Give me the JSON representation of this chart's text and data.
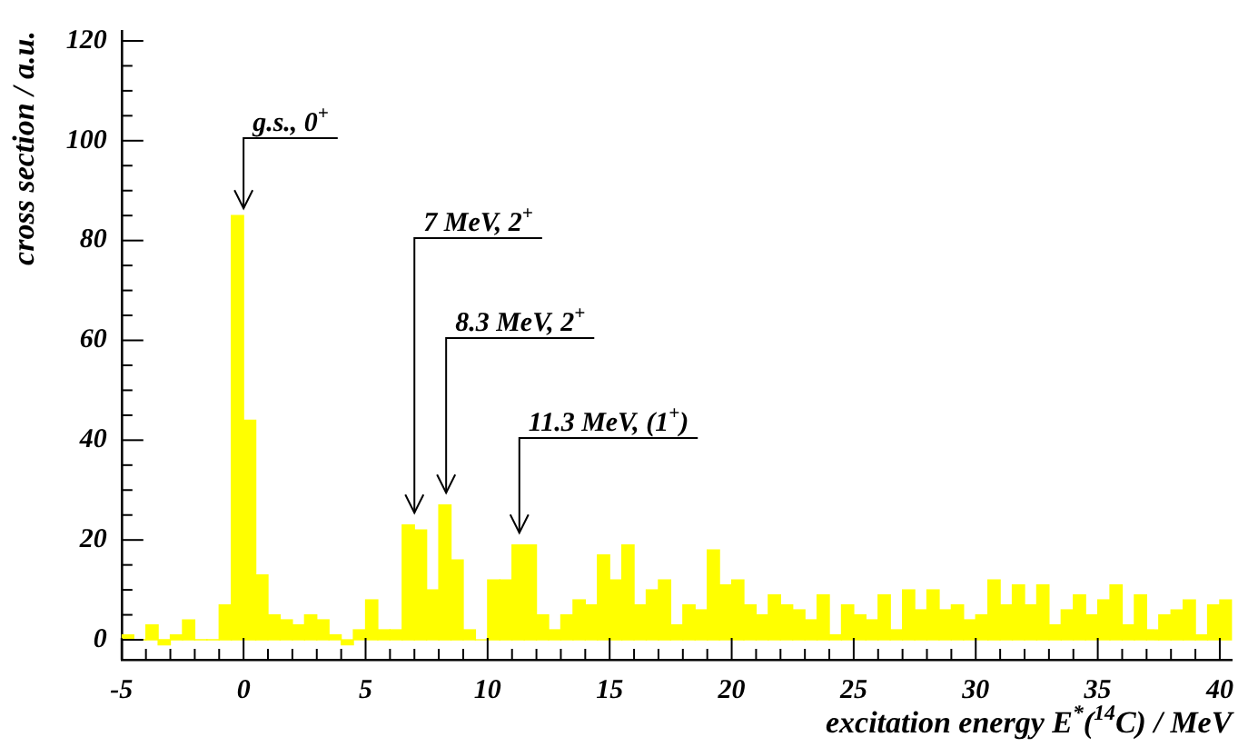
{
  "chart_data": {
    "type": "histogram",
    "xlabel": "excitation energy E$^{*}$($^{14}$C) / MeV",
    "ylabel": "cross section / a.u.",
    "color": "#ffff00",
    "grid": false,
    "bins": [
      -5,
      -4.5,
      -4,
      -3.5,
      -3,
      -2.5,
      -2,
      -1.5,
      -1,
      -0.5,
      0,
      0.5,
      1,
      1.5,
      2,
      2.5,
      3,
      3.5,
      4,
      4.5,
      5,
      5.5,
      6,
      6.5,
      7,
      7.5,
      8,
      8.5,
      9,
      9.5,
      10,
      10.5,
      11,
      11.5,
      12,
      12.5,
      13,
      13.5,
      14,
      14.5,
      15,
      15.5,
      16,
      16.5,
      17,
      17.5,
      18,
      18.5,
      19,
      19.5,
      20,
      20.5,
      21,
      21.5,
      22,
      22.5,
      23,
      23.5,
      24,
      24.5,
      25,
      25.5,
      26,
      26.5,
      27,
      27.5,
      28,
      28.5,
      29,
      29.5,
      30,
      30.5,
      31,
      31.5,
      32,
      32.5,
      33,
      33.5,
      34,
      34.5,
      35,
      35.5,
      36,
      36.5,
      37,
      37.5,
      38,
      38.5,
      39,
      39.5,
      40,
      40.5
    ],
    "values": [
      1,
      0,
      3,
      -1,
      1,
      4,
      0,
      0,
      7,
      85,
      44,
      13,
      5,
      4,
      3,
      5,
      4,
      1,
      -1,
      2,
      8,
      2,
      2,
      23,
      22,
      10,
      27,
      16,
      2,
      0,
      12,
      12,
      19,
      19,
      5,
      2,
      5,
      8,
      7,
      17,
      12,
      19,
      7,
      10,
      12,
      3,
      7,
      6,
      18,
      11,
      12,
      7,
      5,
      9,
      7,
      6,
      4,
      9,
      1,
      7,
      5,
      4,
      9,
      2,
      10,
      6,
      10,
      6,
      7,
      4,
      5,
      12,
      7,
      11,
      7,
      11,
      3,
      6,
      9,
      5,
      8,
      11,
      3,
      9,
      2,
      5,
      6,
      8,
      1,
      7,
      8
    ],
    "xlim": [
      -5,
      40.5
    ],
    "ylim": [
      -4,
      122
    ],
    "xticks": [
      -5,
      {
        "value": -4,
        "label": null
      },
      {
        "value": -3,
        "label": null
      },
      {
        "value": -2,
        "label": null
      },
      {
        "value": -1,
        "label": null
      },
      0,
      {
        "value": 1,
        "label": null
      },
      {
        "value": 2,
        "label": null
      },
      {
        "value": 3,
        "label": null
      },
      {
        "value": 4,
        "label": null
      },
      5,
      {
        "value": 6,
        "label": null
      },
      {
        "value": 7,
        "label": null
      },
      {
        "value": 8,
        "label": null
      },
      {
        "value": 9,
        "label": null
      },
      10,
      {
        "value": 11,
        "label": null
      },
      {
        "value": 12,
        "label": null
      },
      {
        "value": 13,
        "label": null
      },
      {
        "value": 14,
        "label": null
      },
      15,
      {
        "value": 16,
        "label": null
      },
      {
        "value": 17,
        "label": null
      },
      {
        "value": 18,
        "label": null
      },
      {
        "value": 19,
        "label": null
      },
      20,
      {
        "value": 21,
        "label": null
      },
      {
        "value": 22,
        "label": null
      },
      {
        "value": 23,
        "label": null
      },
      {
        "value": 24,
        "label": null
      },
      25,
      {
        "value": 26,
        "label": null
      },
      {
        "value": 27,
        "label": null
      },
      {
        "value": 28,
        "label": null
      },
      {
        "value": 29,
        "label": null
      },
      30,
      {
        "value": 31,
        "label": null
      },
      {
        "value": 32,
        "label": null
      },
      {
        "value": 33,
        "label": null
      },
      {
        "value": 34,
        "label": null
      },
      35,
      {
        "value": 36,
        "label": null
      },
      {
        "value": 37,
        "label": null
      },
      {
        "value": 38,
        "label": null
      },
      {
        "value": 39,
        "label": null
      },
      40
    ],
    "yticks": [
      0,
      {
        "value": 5,
        "label": null
      },
      {
        "value": 10,
        "label": null
      },
      {
        "value": 15,
        "label": null
      },
      20,
      {
        "value": 25,
        "label": null
      },
      {
        "value": 30,
        "label": null
      },
      {
        "value": 35,
        "label": null
      },
      40,
      {
        "value": 45,
        "label": null
      },
      {
        "value": 50,
        "label": null
      },
      {
        "value": 55,
        "label": null
      },
      60,
      {
        "value": 65,
        "label": null
      },
      {
        "value": 70,
        "label": null
      },
      {
        "value": 75,
        "label": null
      },
      80,
      {
        "value": 85,
        "label": null
      },
      {
        "value": 90,
        "label": null
      },
      {
        "value": 95,
        "label": null
      },
      100,
      {
        "value": 105,
        "label": null
      },
      {
        "value": 110,
        "label": null
      },
      {
        "value": 115,
        "label": null
      },
      120
    ],
    "annotations": [
      {
        "text": "g.s., 0$^{+}$",
        "x": 0,
        "y": 85
      },
      {
        "text": "7 MeV, 2$^{+}$",
        "x": 7,
        "y": 24
      },
      {
        "text": "8.3 MeV, 2$^{+}$",
        "x": 8.3,
        "y": 28
      },
      {
        "text": "11.3 MeV, (1$^{+}$)",
        "x": 11.3,
        "y": 20
      }
    ]
  }
}
